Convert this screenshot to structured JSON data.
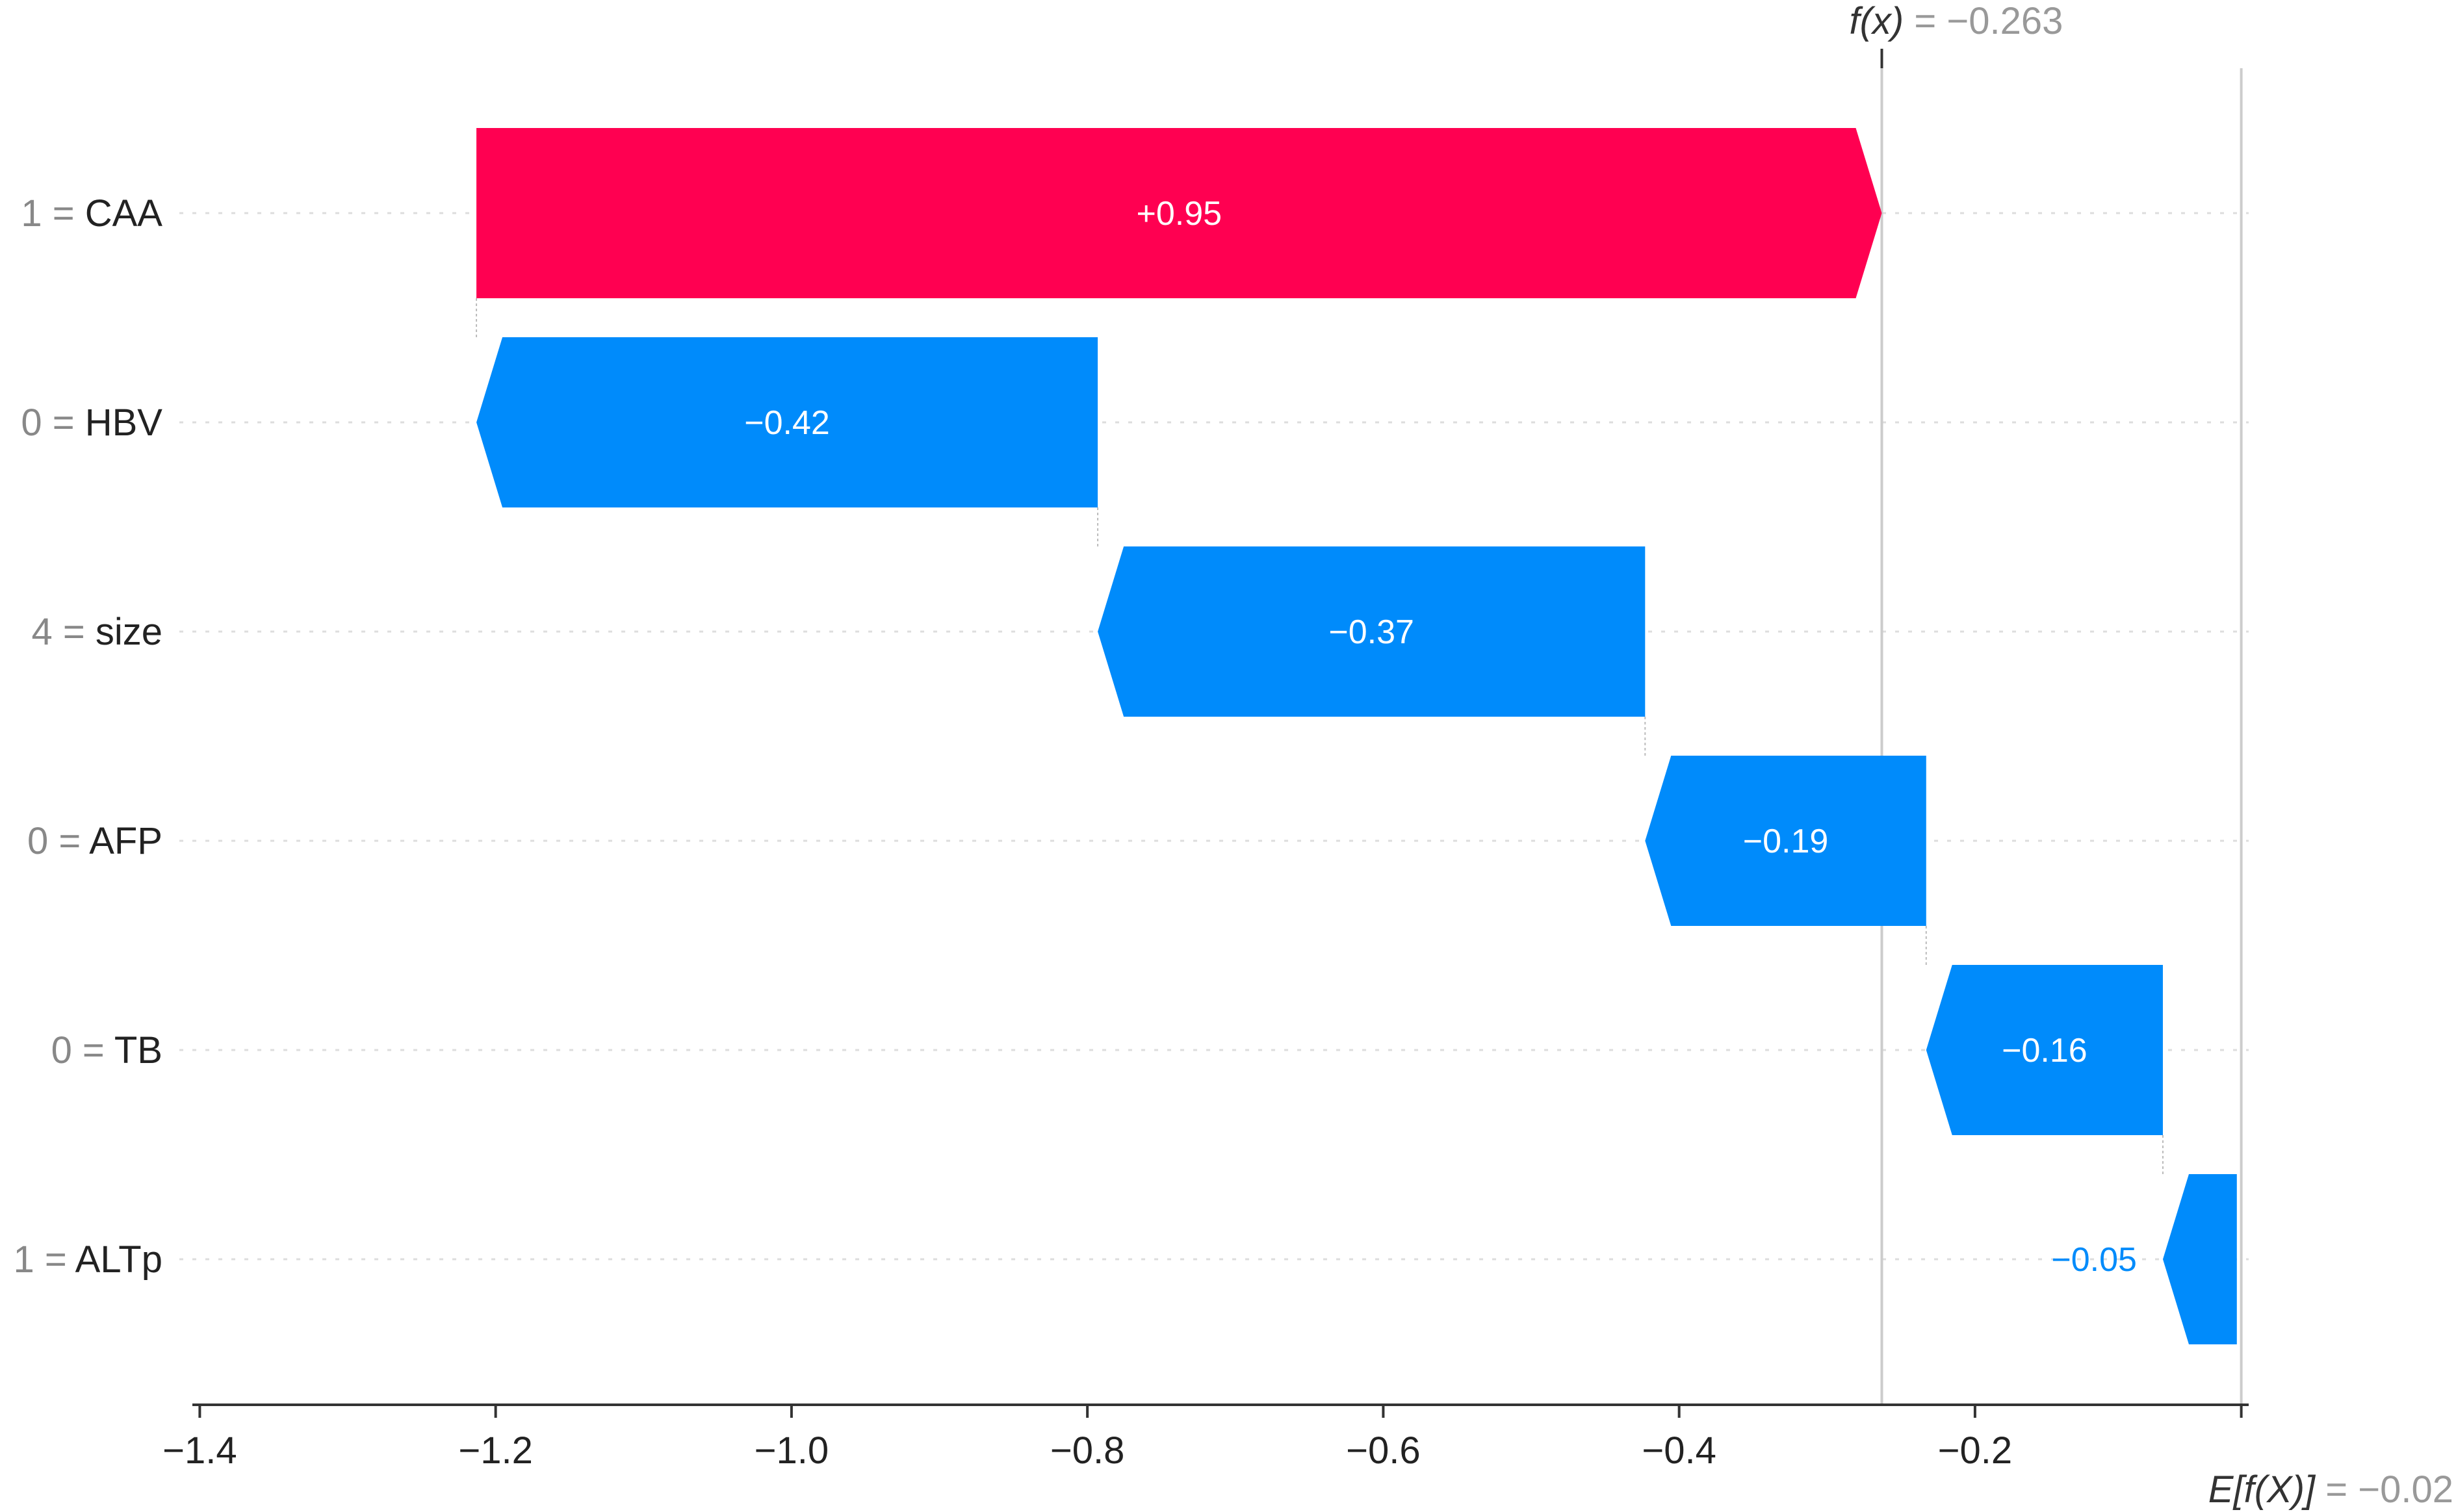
{
  "chart_data": {
    "type": "waterfall",
    "base_value": -0.02,
    "output_value": -0.263,
    "annotations": {
      "output_symbol": "f(x)",
      "output_text": " = −0.263",
      "base_symbol": "E[f(X)]",
      "base_text": " = −0.02"
    },
    "features": [
      {
        "feature_value": "1 = ",
        "feature_name": "CAA",
        "contribution": 0.95,
        "label": "+0.95"
      },
      {
        "feature_value": "0 = ",
        "feature_name": "HBV",
        "contribution": -0.42,
        "label": "−0.42"
      },
      {
        "feature_value": "4 = ",
        "feature_name": "size",
        "contribution": -0.37,
        "label": "−0.37"
      },
      {
        "feature_value": "0 = ",
        "feature_name": "AFP",
        "contribution": -0.19,
        "label": "−0.19"
      },
      {
        "feature_value": "0 = ",
        "feature_name": "TB",
        "contribution": -0.16,
        "label": "−0.16"
      },
      {
        "feature_value": "1 = ",
        "feature_name": "ALTp",
        "contribution": -0.05,
        "label": "−0.05"
      }
    ],
    "x_ticks": [
      {
        "value": -1.4,
        "label": "−1.4"
      },
      {
        "value": -1.2,
        "label": "−1.2"
      },
      {
        "value": -1.0,
        "label": "−1.0"
      },
      {
        "value": -0.8,
        "label": "−0.8"
      },
      {
        "value": -0.6,
        "label": "−0.6"
      },
      {
        "value": -0.4,
        "label": "−0.4"
      },
      {
        "value": -0.2,
        "label": "−0.2"
      }
    ],
    "xlim": [
      -1.405,
      -0.015
    ],
    "colors": {
      "positive": "#ff0051",
      "negative": "#008bfb",
      "axis": "#333333",
      "reference_line": "#cccccc",
      "grid": "#dddddd"
    }
  }
}
